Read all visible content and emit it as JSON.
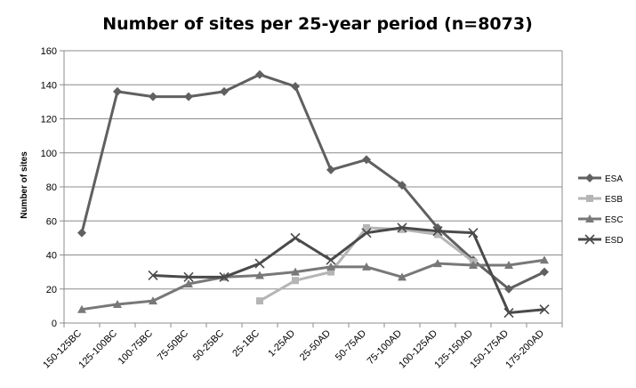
{
  "chart_data": {
    "type": "line",
    "title": "Number of sites per 25-year period (n=8073)",
    "xlabel": "",
    "ylabel": "Number of sites",
    "ylim": [
      0,
      160
    ],
    "yticks": [
      0,
      20,
      40,
      60,
      80,
      100,
      120,
      140,
      160
    ],
    "grid": true,
    "legend_position": "right",
    "categories": [
      "150-125BC",
      "125-100BC",
      "100-75BC",
      "75-50BC",
      "50-25BC",
      "25-1BC",
      "1-25AD",
      "25-50AD",
      "50-75AD",
      "75-100AD",
      "100-125AD",
      "125-150AD",
      "150-175AD",
      "175-200AD"
    ],
    "series": [
      {
        "name": "ESA",
        "marker": "diamond",
        "color": "#606060",
        "values": [
          53,
          136,
          133,
          133,
          136,
          146,
          139,
          90,
          96,
          81,
          56,
          37,
          20,
          30
        ]
      },
      {
        "name": "ESB",
        "marker": "square",
        "color": "#b5b5b5",
        "values": [
          null,
          null,
          null,
          null,
          null,
          13,
          25,
          30,
          56,
          55,
          52,
          36,
          null,
          null
        ]
      },
      {
        "name": "ESC",
        "marker": "triangle",
        "color": "#787878",
        "values": [
          8,
          11,
          13,
          23,
          27,
          28,
          30,
          33,
          33,
          27,
          35,
          34,
          34,
          37
        ]
      },
      {
        "name": "ESD",
        "marker": "x",
        "color": "#4a4a4a",
        "values": [
          null,
          null,
          28,
          27,
          27,
          35,
          50,
          37,
          53,
          56,
          54,
          53,
          6,
          8
        ]
      }
    ]
  }
}
